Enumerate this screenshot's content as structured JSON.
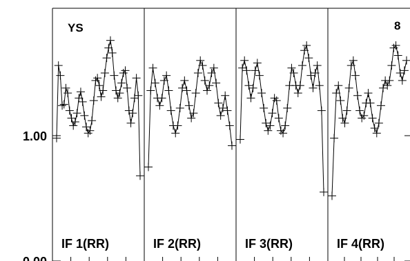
{
  "chart_data": {
    "type": "line",
    "title": "",
    "xlabel": "",
    "ylabel": "",
    "ylim": [
      0.0,
      2.0
    ],
    "y_ticks": [
      {
        "value": 1.0,
        "label": "1.00"
      },
      {
        "value": 0.0,
        "label": "0.00"
      }
    ],
    "top_left_label": "YS",
    "top_right_label": "8",
    "grid": false,
    "line_color": "#000000",
    "marker": "plus",
    "panels": [
      {
        "name": "IF 1(RR)",
        "values": [
          0.98,
          1.56,
          1.48,
          1.24,
          1.25,
          1.38,
          1.34,
          1.2,
          1.14,
          1.08,
          1.11,
          1.18,
          1.3,
          1.35,
          1.27,
          1.16,
          1.07,
          1.02,
          1.04,
          1.12,
          1.28,
          1.44,
          1.46,
          1.4,
          1.31,
          1.36,
          1.5,
          1.62,
          1.7,
          1.76,
          1.66,
          1.48,
          1.36,
          1.3,
          1.34,
          1.42,
          1.5,
          1.52,
          1.38,
          1.2,
          1.1,
          1.18,
          1.3,
          1.46,
          1.32,
          0.68
        ]
      },
      {
        "name": "IF 2(RR)",
        "values": [
          0.75,
          1.36,
          1.54,
          1.42,
          1.3,
          1.24,
          1.3,
          1.44,
          1.48,
          1.36,
          1.2,
          1.08,
          1.02,
          1.08,
          1.22,
          1.38,
          1.44,
          1.36,
          1.24,
          1.14,
          1.18,
          1.34,
          1.5,
          1.6,
          1.56,
          1.44,
          1.36,
          1.4,
          1.5,
          1.54,
          1.42,
          1.26,
          1.16,
          1.22,
          1.32,
          1.2,
          1.08,
          0.92
        ]
      },
      {
        "name": "IF 3(RR)",
        "values": [
          0.97,
          1.54,
          1.6,
          1.52,
          1.4,
          1.3,
          1.38,
          1.52,
          1.58,
          1.48,
          1.34,
          1.22,
          1.1,
          1.04,
          1.08,
          1.18,
          1.3,
          1.28,
          1.14,
          1.04,
          1.02,
          1.08,
          1.22,
          1.4,
          1.54,
          1.5,
          1.4,
          1.34,
          1.4,
          1.56,
          1.68,
          1.72,
          1.62,
          1.48,
          1.38,
          1.5,
          1.56,
          1.4,
          1.2,
          0.55
        ]
      },
      {
        "name": "IF 4(RR)",
        "values": [
          0.52,
          0.98,
          1.34,
          1.4,
          1.28,
          1.14,
          1.1,
          1.2,
          1.38,
          1.56,
          1.6,
          1.48,
          1.32,
          1.2,
          1.14,
          1.16,
          1.26,
          1.34,
          1.26,
          1.14,
          1.06,
          1.02,
          1.1,
          1.24,
          1.38,
          1.44,
          1.4,
          1.44,
          1.56,
          1.7,
          1.72,
          1.64,
          1.5,
          1.44,
          1.52,
          1.6
        ]
      }
    ]
  }
}
